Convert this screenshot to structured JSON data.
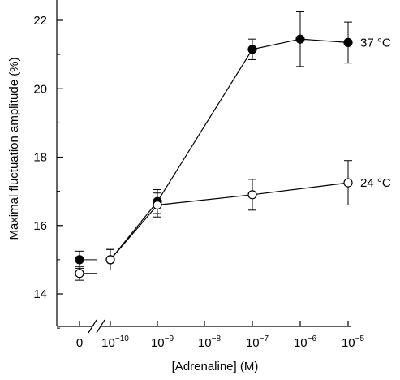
{
  "chart_data": {
    "type": "scatter",
    "xlabel": "[Adrenaline] (M)",
    "ylabel": "Maximal fluctuation amplitude (%)",
    "ylim": [
      13,
      23
    ],
    "yticks": [
      "14",
      "16",
      "18",
      "20",
      "22"
    ],
    "xticks": [
      {
        "base": "0",
        "exp": ""
      },
      {
        "base": "10",
        "exp": "−10"
      },
      {
        "base": "10",
        "exp": "−9"
      },
      {
        "base": "10",
        "exp": "−8"
      },
      {
        "base": "10",
        "exp": "−7"
      },
      {
        "base": "10",
        "exp": "−6"
      },
      {
        "base": "10",
        "exp": "−5"
      }
    ],
    "axis_break_between": [
      "0",
      "10^-10"
    ],
    "series": [
      {
        "name": "37 °C",
        "marker": "filled-circle",
        "color": "#000000",
        "points": [
          {
            "x": "0",
            "y": 15.0,
            "err": 0.25
          },
          {
            "x": "1e-10",
            "y": 15.0,
            "err": 0.3
          },
          {
            "x": "1e-9",
            "y": 16.7,
            "err": 0.35
          },
          {
            "x": "1e-7",
            "y": 21.15,
            "err": 0.3
          },
          {
            "x": "1e-6",
            "y": 21.45,
            "err": 0.8
          },
          {
            "x": "1e-5",
            "y": 21.35,
            "err": 0.6
          }
        ]
      },
      {
        "name": "24 °C",
        "marker": "open-circle",
        "color": "#000000",
        "points": [
          {
            "x": "0",
            "y": 14.6,
            "err": 0.2
          },
          {
            "x": "1e-10",
            "y": 15.0,
            "err": 0.3
          },
          {
            "x": "1e-9",
            "y": 16.6,
            "err": 0.35
          },
          {
            "x": "1e-7",
            "y": 16.9,
            "err": 0.45
          },
          {
            "x": "1e-5",
            "y": 17.25,
            "err": 0.65
          }
        ]
      }
    ]
  }
}
